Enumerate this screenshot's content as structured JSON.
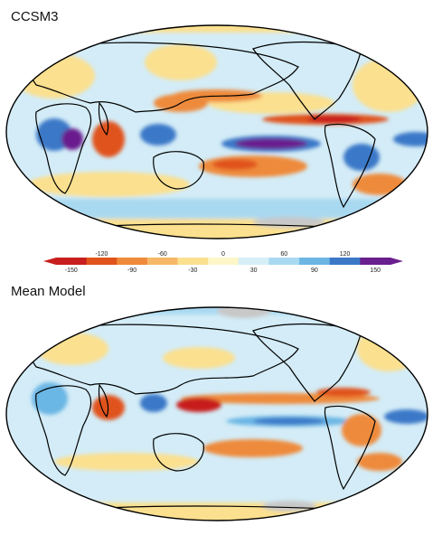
{
  "panels": [
    {
      "title": "CCSM3"
    },
    {
      "title": "Mean Model"
    }
  ],
  "colorbar": {
    "upper_ticks": [
      "-120",
      "-60",
      "0",
      "60",
      "120"
    ],
    "lower_ticks": [
      "-150",
      "-90",
      "-30",
      "30",
      "90",
      "150"
    ],
    "bins": [
      {
        "value": -150,
        "color": "#c81e1e"
      },
      {
        "value": -120,
        "color": "#e0531c"
      },
      {
        "value": -90,
        "color": "#ee8a3a"
      },
      {
        "value": -60,
        "color": "#f6b868"
      },
      {
        "value": -30,
        "color": "#fbe08f"
      },
      {
        "value": 0,
        "color": "#fdf6c8"
      },
      {
        "value": 30,
        "color": "#d6eef8"
      },
      {
        "value": 60,
        "color": "#a9d9f1"
      },
      {
        "value": 90,
        "color": "#6bb6e4"
      },
      {
        "value": 120,
        "color": "#3b78c8"
      },
      {
        "value": 150,
        "color": "#6a1f8e"
      }
    ]
  },
  "colors": {
    "ocean_base": "#d3ecf7",
    "land_missing": "#c8c8c8",
    "coastline": "#000000"
  }
}
